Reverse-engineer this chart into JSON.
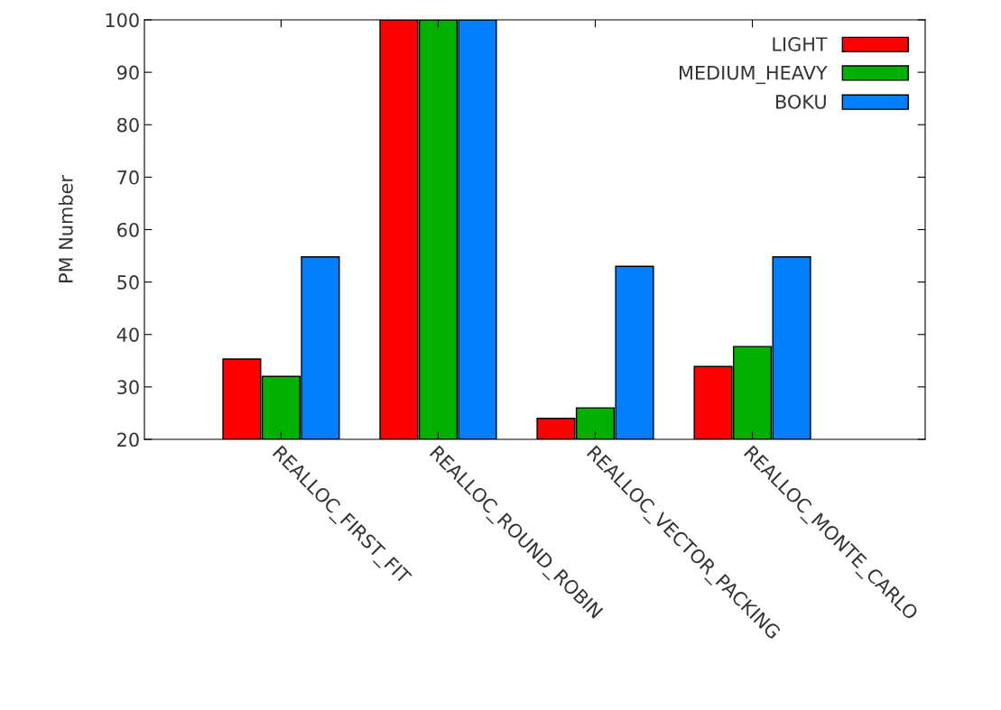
{
  "chart_data": {
    "type": "bar",
    "ylabel": "PM Number",
    "categories": [
      "REALLOC_FIRST_FIT",
      "REALLOC_ROUND_ROBIN",
      "REALLOC_VECTOR_PACKING",
      "REALLOC_MONTE_CARLO"
    ],
    "series": [
      {
        "name": "LIGHT",
        "color": "#ff0000",
        "values": [
          35.3,
          100,
          24.0,
          33.9
        ]
      },
      {
        "name": "MEDIUM_HEAVY",
        "color": "#00b000",
        "values": [
          32.0,
          100,
          26.0,
          37.7
        ]
      },
      {
        "name": "BOKU",
        "color": "#0080ff",
        "values": [
          54.8,
          100,
          53.0,
          54.8
        ]
      }
    ],
    "ylim": [
      20,
      100
    ],
    "yticks": [
      20,
      30,
      40,
      50,
      60,
      70,
      80,
      90,
      100
    ],
    "grid": false,
    "legend": "top right"
  }
}
